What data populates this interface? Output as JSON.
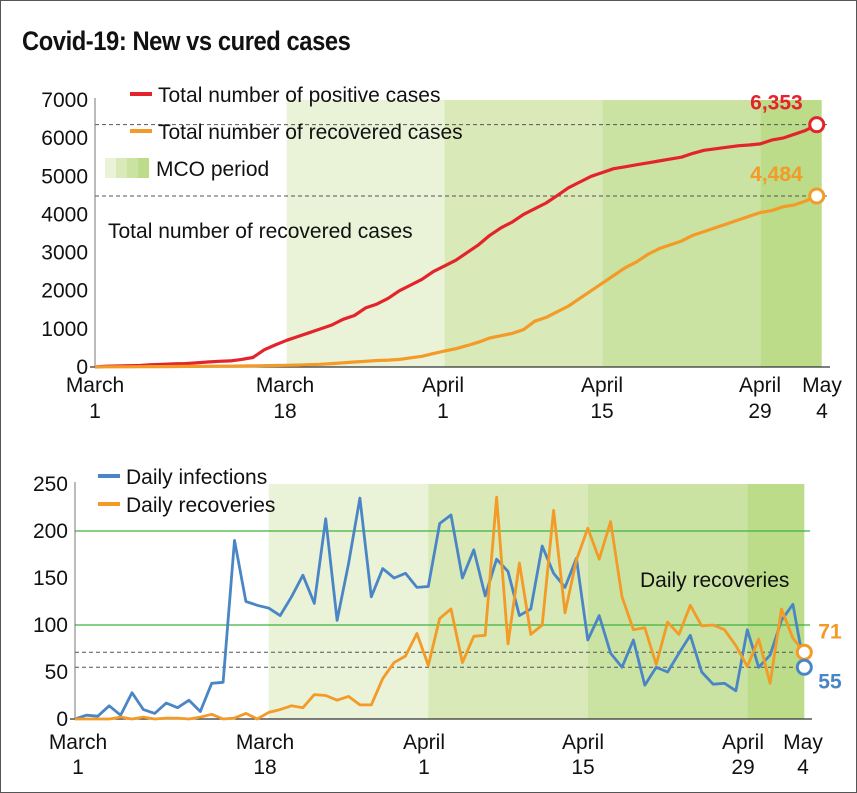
{
  "title": "Covid-19: New vs cured cases",
  "colors": {
    "positive": "#e3242b",
    "recovered": "#f39a27",
    "daily_infections": "#4a86c5",
    "daily_recoveries": "#f39a27",
    "mco_light": "#eaf2d8",
    "mco_mid": "#d9e9b8",
    "mco_dark": "#cbe3a2",
    "mco_darkest": "#bcdc8a",
    "gridline_green": "#3db33d"
  },
  "chart_data": [
    {
      "type": "line",
      "x_ticks": [
        {
          "day": 0,
          "line1": "March",
          "line2": "1"
        },
        {
          "day": 17,
          "line1": "March",
          "line2": "18"
        },
        {
          "day": 31,
          "line1": "April",
          "line2": "1"
        },
        {
          "day": 45,
          "line1": "April",
          "line2": "15"
        },
        {
          "day": 59,
          "line1": "April",
          "line2": "29"
        },
        {
          "day": 64,
          "line1": "May",
          "line2": "4"
        }
      ],
      "y_ticks": [
        "0",
        "1000",
        "2000",
        "3000",
        "4000",
        "5000",
        "6000",
        "7000"
      ],
      "ylim": [
        0,
        7000
      ],
      "xlim": [
        0,
        65
      ],
      "series": [
        {
          "name": "Total number of positive cases",
          "color": "positive",
          "values": [
            0,
            20,
            25,
            35,
            40,
            60,
            70,
            80,
            90,
            110,
            130,
            150,
            160,
            200,
            250,
            450,
            580,
            700,
            800,
            900,
            1000,
            1100,
            1250,
            1350,
            1550,
            1650,
            1800,
            2000,
            2150,
            2300,
            2500,
            2650,
            2800,
            3000,
            3200,
            3450,
            3650,
            3800,
            4000,
            4150,
            4300,
            4500,
            4700,
            4850,
            5000,
            5100,
            5200,
            5250,
            5300,
            5350,
            5400,
            5450,
            5500,
            5600,
            5680,
            5720,
            5760,
            5800,
            5820,
            5850,
            5950,
            6000,
            6100,
            6200,
            6353
          ]
        },
        {
          "name": "Total number of recovered cases",
          "color": "recovered",
          "values": [
            0,
            5,
            5,
            5,
            8,
            10,
            10,
            12,
            15,
            15,
            18,
            20,
            22,
            25,
            30,
            35,
            40,
            45,
            50,
            60,
            70,
            90,
            110,
            130,
            150,
            170,
            180,
            200,
            240,
            280,
            350,
            420,
            480,
            560,
            650,
            760,
            820,
            880,
            980,
            1200,
            1300,
            1450,
            1600,
            1800,
            2000,
            2200,
            2400,
            2600,
            2750,
            2950,
            3100,
            3200,
            3300,
            3450,
            3550,
            3650,
            3750,
            3850,
            3950,
            4050,
            4100,
            4200,
            4250,
            4350,
            4484
          ]
        }
      ],
      "end_labels": [
        {
          "text": "6,353",
          "series": 0
        },
        {
          "text": "4,484",
          "series": 1
        }
      ],
      "reference_lines": [
        6353,
        4484
      ],
      "mco_period": {
        "start": 17,
        "end": 64
      },
      "legend": [
        {
          "label": "Total number of positive cases",
          "color": "positive"
        },
        {
          "label": "Total number of recovered cases",
          "color": "recovered"
        },
        {
          "label": "MCO period",
          "color": "mco"
        }
      ],
      "annotation": "Total number of recovered cases"
    },
    {
      "type": "line",
      "x_ticks": [
        {
          "day": 0,
          "line1": "March",
          "line2": "1"
        },
        {
          "day": 17,
          "line1": "March",
          "line2": "18"
        },
        {
          "day": 31,
          "line1": "April",
          "line2": "1"
        },
        {
          "day": 45,
          "line1": "April",
          "line2": "15"
        },
        {
          "day": 59,
          "line1": "April",
          "line2": "29"
        },
        {
          "day": 64,
          "line1": "May",
          "line2": "4"
        }
      ],
      "y_ticks": [
        "0",
        "50",
        "100",
        "150",
        "200",
        "250"
      ],
      "ylim": [
        0,
        250
      ],
      "xlim": [
        0,
        64.5
      ],
      "series": [
        {
          "name": "Daily infections",
          "color": "daily_infections",
          "values": [
            0,
            4,
            3,
            14,
            4,
            28,
            10,
            6,
            17,
            12,
            20,
            8,
            38,
            39,
            190,
            125,
            121,
            118,
            110,
            130,
            153,
            123,
            213,
            105,
            165,
            235,
            130,
            160,
            150,
            155,
            140,
            141,
            208,
            217,
            150,
            180,
            131,
            170,
            157,
            110,
            117,
            184,
            155,
            140,
            171,
            84,
            110,
            70,
            55,
            84,
            36,
            55,
            50,
            70,
            89,
            50,
            37,
            38,
            30,
            95,
            55,
            68,
            105,
            122,
            55
          ]
        },
        {
          "name": "Daily recoveries",
          "color": "daily_recoveries",
          "values": [
            0,
            0,
            0,
            0,
            2,
            0,
            2,
            0,
            1,
            1,
            0,
            2,
            5,
            0,
            1,
            6,
            0,
            7,
            10,
            14,
            12,
            26,
            25,
            20,
            24,
            15,
            15,
            43,
            60,
            67,
            91,
            57,
            107,
            117,
            60,
            88,
            89,
            236,
            80,
            166,
            90,
            100,
            222,
            113,
            169,
            203,
            170,
            210,
            130,
            95,
            97,
            58,
            103,
            90,
            121,
            99,
            100,
            95,
            78,
            56,
            85,
            38,
            117,
            86,
            71
          ]
        }
      ],
      "end_labels": [
        {
          "text": "71",
          "series": 1
        },
        {
          "text": "55",
          "series": 0
        }
      ],
      "green_gridlines": [
        100,
        200
      ],
      "reference_lines": [
        71,
        55
      ],
      "mco_period": {
        "start": 17,
        "end": 64
      },
      "legend": [
        {
          "label": "Daily infections",
          "color": "daily_infections"
        },
        {
          "label": "Daily recoveries",
          "color": "daily_recoveries"
        }
      ],
      "annotation": "Daily recoveries"
    }
  ]
}
